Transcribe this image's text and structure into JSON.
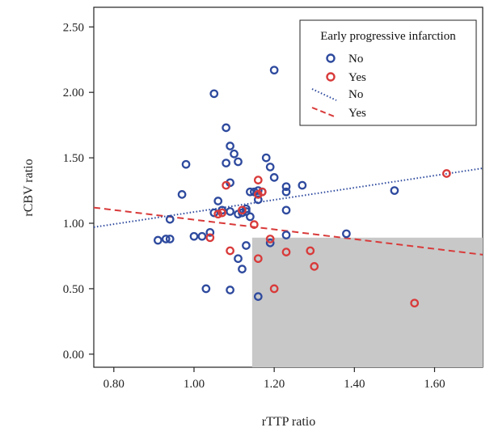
{
  "chart_data": {
    "type": "scatter",
    "xlabel": "rTTP ratio",
    "ylabel": "rCBV ratio",
    "xlim": [
      0.75,
      1.72
    ],
    "ylim": [
      -0.1,
      2.65
    ],
    "xticks": [
      "0.80",
      "1.00",
      "1.20",
      "1.40",
      "1.60"
    ],
    "yticks": [
      "0.00",
      "0.50",
      "1.00",
      "1.50",
      "2.00",
      "2.50"
    ],
    "grid": false,
    "legend_position": "top-right",
    "legend_title": "Early progressive infarction",
    "shaded_region": {
      "x": [
        1.145,
        1.72
      ],
      "y": [
        -0.1,
        0.89
      ],
      "color": "#c8c8c8"
    },
    "colors": {
      "no": "#2e4a9e",
      "yes": "#d93a3a"
    },
    "series": [
      {
        "name": "No",
        "marker": "circle",
        "color": "#2e4a9e",
        "points": [
          [
            0.91,
            0.87
          ],
          [
            0.93,
            0.88
          ],
          [
            0.94,
            0.88
          ],
          [
            0.94,
            1.03
          ],
          [
            0.97,
            1.22
          ],
          [
            0.98,
            1.45
          ],
          [
            1.0,
            0.9
          ],
          [
            1.02,
            0.9
          ],
          [
            1.03,
            0.5
          ],
          [
            1.04,
            0.93
          ],
          [
            1.05,
            1.08
          ],
          [
            1.05,
            1.99
          ],
          [
            1.06,
            1.17
          ],
          [
            1.07,
            1.1
          ],
          [
            1.08,
            1.73
          ],
          [
            1.08,
            1.46
          ],
          [
            1.09,
            1.59
          ],
          [
            1.09,
            1.09
          ],
          [
            1.09,
            1.31
          ],
          [
            1.09,
            0.49
          ],
          [
            1.1,
            1.53
          ],
          [
            1.11,
            1.47
          ],
          [
            1.11,
            0.73
          ],
          [
            1.11,
            1.07
          ],
          [
            1.12,
            1.08
          ],
          [
            1.12,
            0.65
          ],
          [
            1.13,
            1.09
          ],
          [
            1.13,
            0.83
          ],
          [
            1.13,
            1.11
          ],
          [
            1.14,
            1.05
          ],
          [
            1.14,
            1.24
          ],
          [
            1.15,
            1.24
          ],
          [
            1.16,
            1.25
          ],
          [
            1.16,
            1.18
          ],
          [
            1.16,
            0.44
          ],
          [
            1.17,
            1.24
          ],
          [
            1.18,
            1.5
          ],
          [
            1.19,
            1.43
          ],
          [
            1.19,
            0.85
          ],
          [
            1.2,
            2.17
          ],
          [
            1.2,
            1.35
          ],
          [
            1.23,
            1.28
          ],
          [
            1.23,
            1.24
          ],
          [
            1.23,
            1.1
          ],
          [
            1.23,
            0.91
          ],
          [
            1.27,
            1.29
          ],
          [
            1.38,
            0.92
          ],
          [
            1.5,
            1.25
          ]
        ]
      },
      {
        "name": "Yes",
        "marker": "circle",
        "color": "#d93a3a",
        "points": [
          [
            1.04,
            0.89
          ],
          [
            1.06,
            1.07
          ],
          [
            1.07,
            1.08
          ],
          [
            1.08,
            1.29
          ],
          [
            1.09,
            0.79
          ],
          [
            1.12,
            1.1
          ],
          [
            1.15,
            0.99
          ],
          [
            1.16,
            1.33
          ],
          [
            1.16,
            1.22
          ],
          [
            1.17,
            1.24
          ],
          [
            1.16,
            0.73
          ],
          [
            1.19,
            0.88
          ],
          [
            1.2,
            0.5
          ],
          [
            1.23,
            0.78
          ],
          [
            1.29,
            0.79
          ],
          [
            1.3,
            0.67
          ],
          [
            1.55,
            0.39
          ],
          [
            1.63,
            1.38
          ]
        ]
      }
    ],
    "fit_lines": [
      {
        "name": "No",
        "style": "dotted",
        "color": "#2e4a9e",
        "x": [
          0.75,
          1.72
        ],
        "y": [
          0.97,
          1.42
        ]
      },
      {
        "name": "Yes",
        "style": "dashed",
        "color": "#d93a3a",
        "x": [
          0.75,
          1.72
        ],
        "y": [
          1.12,
          0.76
        ]
      }
    ]
  }
}
